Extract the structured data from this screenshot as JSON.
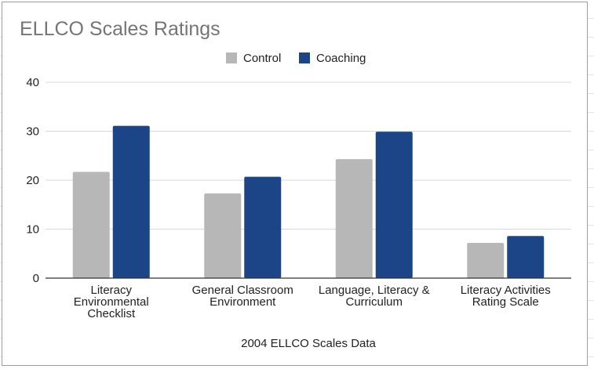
{
  "chart_data": {
    "type": "bar",
    "title": "ELLCO Scales Ratings",
    "xlabel": "2004 ELLCO Scales Data",
    "ylabel": "",
    "ylim": [
      0,
      40
    ],
    "yticks": [
      "0",
      "10",
      "20",
      "30",
      "40"
    ],
    "grid": true,
    "legend_position": "top",
    "categories": [
      [
        "Literacy",
        "Environmental",
        "Checklist"
      ],
      [
        "General Classroom",
        "Environment"
      ],
      [
        "Language, Literacy &",
        "Curriculum"
      ],
      [
        "Literacy Activities",
        "Rating Scale"
      ]
    ],
    "series": [
      {
        "name": "Control",
        "color": "#b7b7b7",
        "values": [
          21.7,
          17.3,
          24.3,
          7.2
        ]
      },
      {
        "name": "Coaching",
        "color": "#1c4587",
        "values": [
          31.1,
          20.7,
          29.9,
          8.6
        ]
      }
    ]
  }
}
